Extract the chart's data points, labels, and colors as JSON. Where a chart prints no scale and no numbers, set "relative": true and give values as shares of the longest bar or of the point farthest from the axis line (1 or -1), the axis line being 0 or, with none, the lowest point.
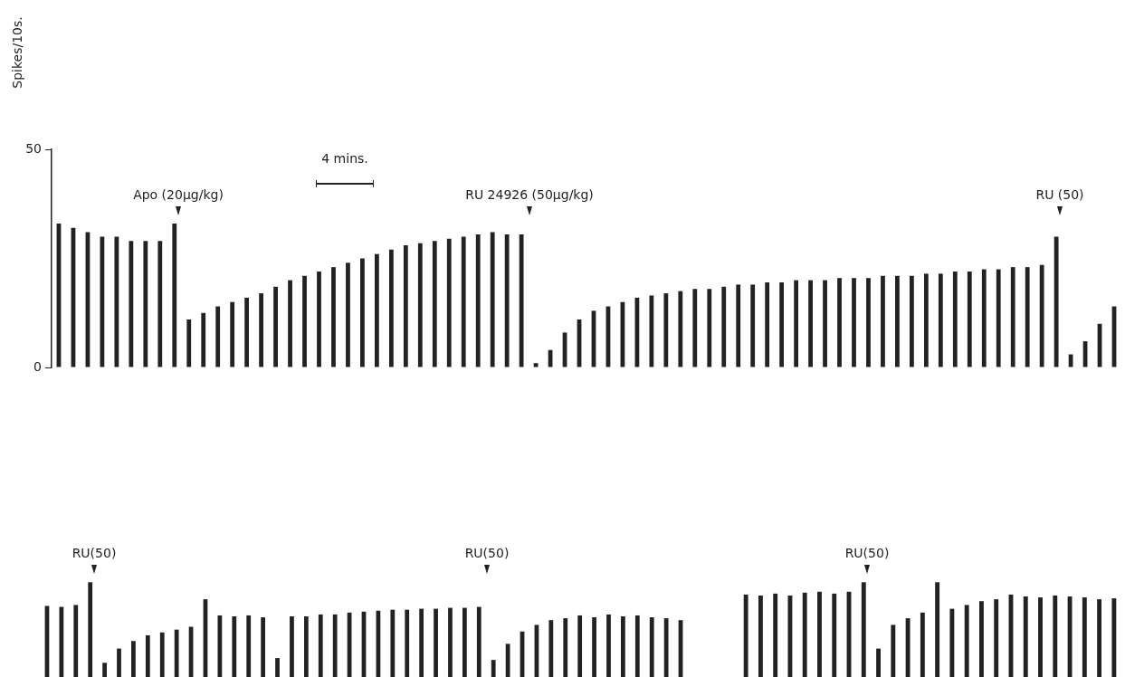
{
  "chart_data": [
    {
      "type": "bar",
      "ylabel": "Spikes/10s.",
      "color": "#222222",
      "ylim": [
        0,
        50
      ],
      "yticks": [
        0,
        50
      ],
      "tick_labels": "y",
      "categories": [
        null,
        null,
        null,
        null,
        null,
        null,
        null,
        null,
        null,
        null,
        null,
        null,
        null,
        null,
        null,
        null,
        null,
        null,
        null,
        null,
        null,
        null,
        null,
        null,
        null,
        null,
        null,
        null,
        null,
        null,
        null,
        null,
        null,
        null,
        null,
        null,
        null,
        null,
        null,
        null,
        null,
        null,
        null,
        null,
        null,
        null,
        null,
        null,
        null,
        null,
        null,
        null,
        null,
        null,
        null,
        null,
        null,
        null,
        null,
        null,
        null,
        null,
        null,
        null,
        null,
        null,
        null,
        null,
        null,
        null,
        null,
        null,
        null,
        null
      ],
      "values": [
        33,
        32,
        31,
        30,
        30,
        29,
        29,
        29,
        33,
        11,
        12.5,
        14,
        15,
        16,
        17,
        18.5,
        20,
        21,
        22,
        23,
        24,
        25,
        26,
        27,
        28,
        28.5,
        29,
        29.5,
        30,
        30.5,
        31,
        30.5,
        30.5,
        1,
        4,
        8,
        11,
        13,
        14,
        15,
        16,
        16.5,
        17,
        17.5,
        18,
        18,
        18.5,
        19,
        19,
        19.5,
        19.5,
        20,
        20,
        20,
        20.5,
        20.5,
        20.5,
        21,
        21,
        21,
        21.5,
        21.5,
        22,
        22,
        22.5,
        22.5,
        23,
        23,
        23.5,
        30,
        3,
        6,
        10,
        14
      ],
      "annotations": [
        "Apo (20µg/kg)",
        "RU 24926 (50µg/kg)",
        "RU (50)",
        "4 mins."
      ]
    },
    {
      "type": "bar",
      "relative": true,
      "color": "#222222",
      "tick_labels": false,
      "categories": [
        null,
        null,
        null,
        null,
        null,
        null,
        null,
        null,
        null,
        null,
        null,
        null,
        null,
        null,
        null,
        null,
        null,
        null,
        null,
        null,
        null,
        null,
        null,
        null,
        null,
        null,
        null,
        null,
        null,
        null,
        null,
        null,
        null,
        null,
        null,
        null,
        null,
        null,
        null,
        null,
        null,
        null,
        null,
        null,
        null
      ],
      "values": [
        0.75,
        0.74,
        0.76,
        1,
        0.15,
        0.3,
        0.38,
        0.44,
        0.47,
        0.5,
        0.53,
        0.82,
        0.65,
        0.64,
        0.65,
        0.63,
        0.2,
        0.64,
        0.64,
        0.66,
        0.66,
        0.68,
        0.69,
        0.7,
        0.71,
        0.71,
        0.72,
        0.72,
        0.73,
        0.73,
        0.74,
        0.18,
        0.35,
        0.48,
        0.55,
        0.6,
        0.62,
        0.65,
        0.63,
        0.66,
        0.64,
        0.65,
        0.63,
        0.62,
        0.6
      ],
      "annotations": [
        "RU(50)",
        "RU(50)"
      ]
    },
    {
      "type": "bar",
      "relative": true,
      "color": "#222222",
      "tick_labels": false,
      "categories": [
        null,
        null,
        null,
        null,
        null,
        null,
        null,
        null,
        null,
        null,
        null,
        null,
        null,
        null,
        null,
        null,
        null,
        null,
        null,
        null,
        null,
        null,
        null,
        null,
        null,
        null
      ],
      "values": [
        0.87,
        0.86,
        0.88,
        0.86,
        0.89,
        0.9,
        0.88,
        0.9,
        1,
        0.3,
        0.55,
        0.62,
        0.68,
        1,
        0.72,
        0.76,
        0.8,
        0.82,
        0.87,
        0.85,
        0.84,
        0.86,
        0.85,
        0.84,
        0.82,
        0.83
      ],
      "annotations": [
        "RU(50)"
      ]
    }
  ]
}
